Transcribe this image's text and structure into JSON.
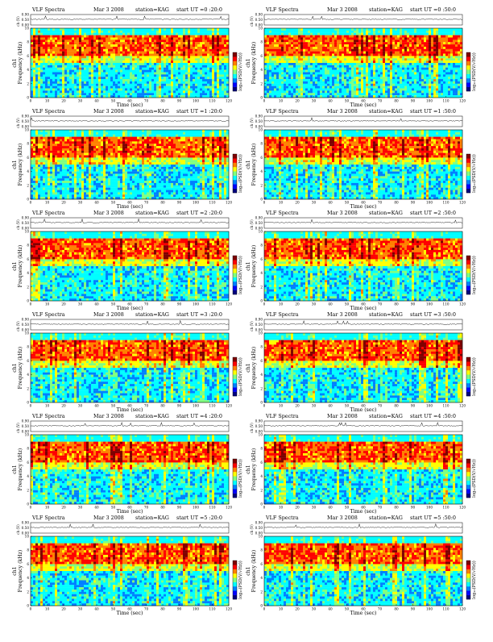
{
  "page": {
    "colors": {
      "spectrogram": [
        "#00007f",
        "#0000ff",
        "#0080ff",
        "#00ffff",
        "#80ff80",
        "#ffff00",
        "#ff8000",
        "#ff0000",
        "#7f0000"
      ],
      "line": "#000000",
      "background": "#ffffff"
    }
  },
  "chart_data": [
    {
      "type": "heatmap",
      "title": "VLF Spectra",
      "date": "Mar 3 2008",
      "station": "station=KAG",
      "start": "start  UT  =0 :20:0",
      "channel": "ch1",
      "xlabel": "Time  (sec)",
      "ylabel": "Frequency  (kHz)",
      "ch_label": "ch (V)",
      "ch_ticks": [
        "0.00",
        "0.50",
        "0.90"
      ],
      "colorbar_label": "log₁₀(PSD(V/√Hz))",
      "x_ticks": [
        "0",
        "10",
        "20",
        "30",
        "40",
        "50",
        "60",
        "70",
        "80",
        "90",
        "100",
        "110",
        "120"
      ],
      "y_ticks": [
        "0",
        "2",
        "4",
        "6",
        "8",
        "10"
      ],
      "xlim": [
        0,
        120
      ],
      "ylim": [
        0,
        10
      ]
    },
    {
      "type": "heatmap",
      "title": "VLF Spectra",
      "date": "Mar 3 2008",
      "station": "station=KAG",
      "start": "start  UT  =0 :50:0",
      "channel": "ch1",
      "xlabel": "Time  (sec)",
      "ylabel": "Frequency  (kHz)",
      "ch_label": "ch (V)",
      "ch_ticks": [
        "0.00",
        "0.50",
        "0.90"
      ],
      "colorbar_label": "log₁₀(PSD(V/√Hz))",
      "x_ticks": [
        "0",
        "10",
        "20",
        "30",
        "40",
        "50",
        "60",
        "70",
        "80",
        "90",
        "100",
        "110",
        "120"
      ],
      "y_ticks": [
        "0",
        "2",
        "4",
        "6",
        "8",
        "10"
      ],
      "xlim": [
        0,
        120
      ],
      "ylim": [
        0,
        10
      ]
    },
    {
      "type": "heatmap",
      "title": "VLF Spectra",
      "date": "Mar 3 2008",
      "station": "station=KAG",
      "start": "start  UT  =1 :20:0",
      "channel": "ch1",
      "xlabel": "Time  (sec)",
      "ylabel": "Frequency  (kHz)",
      "ch_label": "ch (V)",
      "ch_ticks": [
        "0.00",
        "0.50",
        "0.90"
      ],
      "colorbar_label": "log₁₀(PSD(V/√Hz))",
      "x_ticks": [
        "0",
        "10",
        "20",
        "30",
        "40",
        "50",
        "60",
        "70",
        "80",
        "90",
        "100",
        "110",
        "120"
      ],
      "y_ticks": [
        "0",
        "2",
        "4",
        "6",
        "8",
        "10"
      ],
      "xlim": [
        0,
        120
      ],
      "ylim": [
        0,
        10
      ]
    },
    {
      "type": "heatmap",
      "title": "VLF Spectra",
      "date": "Mar 3 2008",
      "station": "station=KAG",
      "start": "start  UT  =1 :50:0",
      "channel": "ch1",
      "xlabel": "Time  (sec)",
      "ylabel": "Frequency  (kHz)",
      "ch_label": "ch (V)",
      "ch_ticks": [
        "0.00",
        "0.50",
        "0.90"
      ],
      "colorbar_label": "log₁₀(PSD(V/√Hz))",
      "x_ticks": [
        "0",
        "10",
        "20",
        "30",
        "40",
        "50",
        "60",
        "70",
        "80",
        "90",
        "100",
        "110",
        "120"
      ],
      "y_ticks": [
        "0",
        "2",
        "4",
        "6",
        "8",
        "10"
      ],
      "xlim": [
        0,
        120
      ],
      "ylim": [
        0,
        10
      ]
    },
    {
      "type": "heatmap",
      "title": "VLF Spectra",
      "date": "Mar 3 2008",
      "station": "station=KAG",
      "start": "start  UT  =2 :20:0",
      "channel": "ch1",
      "xlabel": "Time  (sec)",
      "ylabel": "Frequency  (kHz)",
      "ch_label": "ch (V)",
      "ch_ticks": [
        "0.00",
        "0.50",
        "0.90"
      ],
      "colorbar_label": "log₁₀(PSD(V/√Hz))",
      "x_ticks": [
        "0",
        "10",
        "20",
        "30",
        "40",
        "50",
        "60",
        "70",
        "80",
        "90",
        "100",
        "110",
        "120"
      ],
      "y_ticks": [
        "0",
        "2",
        "4",
        "6",
        "8",
        "10"
      ],
      "xlim": [
        0,
        120
      ],
      "ylim": [
        0,
        10
      ]
    },
    {
      "type": "heatmap",
      "title": "VLF Spectra",
      "date": "Mar 3 2008",
      "station": "station=KAG",
      "start": "start  UT  =2 :50:0",
      "channel": "ch1",
      "xlabel": "Time  (sec)",
      "ylabel": "Frequency  (kHz)",
      "ch_label": "ch (V)",
      "ch_ticks": [
        "0.00",
        "0.50",
        "0.90"
      ],
      "colorbar_label": "log₁₀(PSD(V/√Hz))",
      "x_ticks": [
        "0",
        "10",
        "20",
        "30",
        "40",
        "50",
        "60",
        "70",
        "80",
        "90",
        "100",
        "110",
        "120"
      ],
      "y_ticks": [
        "0",
        "2",
        "4",
        "6",
        "8",
        "10"
      ],
      "xlim": [
        0,
        120
      ],
      "ylim": [
        0,
        10
      ]
    },
    {
      "type": "heatmap",
      "title": "VLF Spectra",
      "date": "Mar 3 2008",
      "station": "station=KAG",
      "start": "start  UT  =3 :20:0",
      "channel": "ch1",
      "xlabel": "Time  (sec)",
      "ylabel": "Frequency  (kHz)",
      "ch_label": "ch (V)",
      "ch_ticks": [
        "0.00",
        "0.50",
        "0.90"
      ],
      "colorbar_label": "log₁₀(PSD(V/√Hz))",
      "x_ticks": [
        "0",
        "10",
        "20",
        "30",
        "40",
        "50",
        "60",
        "70",
        "80",
        "90",
        "100",
        "110",
        "120"
      ],
      "y_ticks": [
        "0",
        "2",
        "4",
        "6",
        "8",
        "10"
      ],
      "xlim": [
        0,
        120
      ],
      "ylim": [
        0,
        10
      ]
    },
    {
      "type": "heatmap",
      "title": "VLF Spectra",
      "date": "Mar 3 2008",
      "station": "station=KAG",
      "start": "start  UT  =3 :50:0",
      "channel": "ch1",
      "xlabel": "Time  (sec)",
      "ylabel": "Frequency  (kHz)",
      "ch_label": "ch (V)",
      "ch_ticks": [
        "0.00",
        "0.50",
        "0.90"
      ],
      "colorbar_label": "log₁₀(PSD(V/√Hz))",
      "x_ticks": [
        "0",
        "10",
        "20",
        "30",
        "40",
        "50",
        "60",
        "70",
        "80",
        "90",
        "100",
        "110",
        "120"
      ],
      "y_ticks": [
        "0",
        "2",
        "4",
        "6",
        "8",
        "10"
      ],
      "xlim": [
        0,
        120
      ],
      "ylim": [
        0,
        10
      ]
    },
    {
      "type": "heatmap",
      "title": "VLF Spectra",
      "date": "Mar 3 2008",
      "station": "station=KAG",
      "start": "start  UT  =4 :20:0",
      "channel": "ch1",
      "xlabel": "Time  (sec)",
      "ylabel": "Frequency  (kHz)",
      "ch_label": "ch (V)",
      "ch_ticks": [
        "0.00",
        "0.50",
        "0.90"
      ],
      "colorbar_label": "log₁₀(PSD(V/√Hz))",
      "x_ticks": [
        "0",
        "10",
        "20",
        "30",
        "40",
        "50",
        "60",
        "70",
        "80",
        "90",
        "100",
        "110",
        "120"
      ],
      "y_ticks": [
        "0",
        "2",
        "4",
        "6",
        "8",
        "10"
      ],
      "xlim": [
        0,
        120
      ],
      "ylim": [
        0,
        10
      ]
    },
    {
      "type": "heatmap",
      "title": "VLF Spectra",
      "date": "Mar 3 2008",
      "station": "station=KAG",
      "start": "start  UT  =4 :50:0",
      "channel": "ch1",
      "xlabel": "Time  (sec)",
      "ylabel": "Frequency  (kHz)",
      "ch_label": "ch (V)",
      "ch_ticks": [
        "0.00",
        "0.50",
        "0.90"
      ],
      "colorbar_label": "log₁₀(PSD(V/√Hz))",
      "x_ticks": [
        "0",
        "10",
        "20",
        "30",
        "40",
        "50",
        "60",
        "70",
        "80",
        "90",
        "100",
        "110",
        "120"
      ],
      "y_ticks": [
        "0",
        "2",
        "4",
        "6",
        "8",
        "10"
      ],
      "xlim": [
        0,
        120
      ],
      "ylim": [
        0,
        10
      ]
    },
    {
      "type": "heatmap",
      "title": "VLF Spectra",
      "date": "Mar 3 2008",
      "station": "station=KAG",
      "start": "start  UT  =5 :20:0",
      "channel": "ch1",
      "xlabel": "Time  (sec)",
      "ylabel": "Frequency  (kHz)",
      "ch_label": "ch (V)",
      "ch_ticks": [
        "0.00",
        "0.50",
        "0.90"
      ],
      "colorbar_label": "log₁₀(PSD(V/√Hz))",
      "x_ticks": [
        "0",
        "10",
        "20",
        "30",
        "40",
        "50",
        "60",
        "70",
        "80",
        "90",
        "100",
        "110",
        "120"
      ],
      "y_ticks": [
        "0",
        "2",
        "4",
        "6",
        "8",
        "10"
      ],
      "xlim": [
        0,
        120
      ],
      "ylim": [
        0,
        10
      ]
    },
    {
      "type": "heatmap",
      "title": "VLF Spectra",
      "date": "Mar 3 2008",
      "station": "station=KAG",
      "start": "start  UT  =5 :50:0",
      "channel": "ch1",
      "xlabel": "Time  (sec)",
      "ylabel": "Frequency  (kHz)",
      "ch_label": "ch (V)",
      "ch_ticks": [
        "0.00",
        "0.50",
        "0.90"
      ],
      "colorbar_label": "log₁₀(PSD(V/√Hz))",
      "x_ticks": [
        "0",
        "10",
        "20",
        "30",
        "40",
        "50",
        "60",
        "70",
        "80",
        "90",
        "100",
        "110",
        "120"
      ],
      "y_ticks": [
        "0",
        "2",
        "4",
        "6",
        "8",
        "10"
      ],
      "xlim": [
        0,
        120
      ],
      "ylim": [
        0,
        10
      ]
    }
  ]
}
